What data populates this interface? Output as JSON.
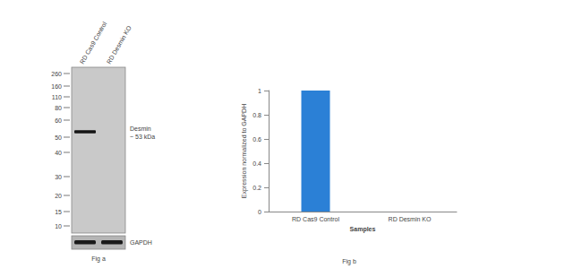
{
  "blot": {
    "lanes": [
      "RD Cas9 Control",
      "RD Desmin KO"
    ],
    "markers": [
      260,
      160,
      110,
      80,
      60,
      50,
      40,
      30,
      20,
      15,
      10
    ],
    "bands": [
      {
        "lane": 0,
        "kda": 53
      }
    ],
    "band_label": [
      "Desmin",
      "~ 53 kDa"
    ],
    "loading_control": "GAPDH",
    "loading_lanes": [
      0,
      1
    ],
    "caption": "Fig a"
  },
  "chart_data": {
    "type": "bar",
    "title": "Fig b",
    "x_label": "Samples",
    "y_label": "Expression normalized to GAPDH",
    "categories": [
      "RD Cas9 Control",
      "RD Desmin KO"
    ],
    "values": [
      1,
      0
    ],
    "color": "#2b80d6",
    "ylim": [
      0,
      1
    ],
    "yticks": [
      0,
      0.2,
      0.4,
      0.6,
      0.8,
      1
    ],
    "grid": false
  }
}
